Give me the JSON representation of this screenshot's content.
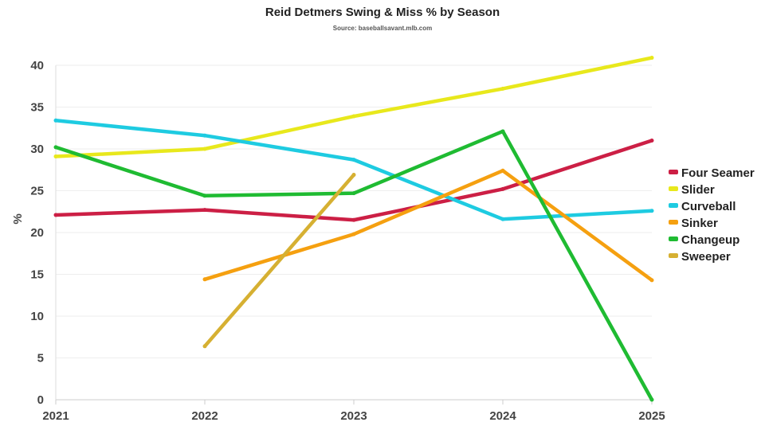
{
  "chart_data": {
    "type": "line",
    "title": "Reid Detmers Swing & Miss % by Season",
    "subtitle": "Source: baseballsavant.mlb.com",
    "xlabel": "",
    "ylabel": "%",
    "x": [
      "2021",
      "2022",
      "2023",
      "2024",
      "2025"
    ],
    "ylim": [
      0,
      40
    ],
    "yticks": [
      0,
      5,
      10,
      15,
      20,
      25,
      30,
      35,
      40
    ],
    "grid": true,
    "legend_position": "right",
    "series": [
      {
        "name": "Four Seamer",
        "color": "#cc1f45",
        "values": [
          22.1,
          22.7,
          21.5,
          25.2,
          31.0
        ]
      },
      {
        "name": "Slider",
        "color": "#e8e81c",
        "values": [
          29.1,
          30.0,
          33.9,
          37.2,
          40.9
        ]
      },
      {
        "name": "Curveball",
        "color": "#1ecbe1",
        "values": [
          33.4,
          31.6,
          28.7,
          21.6,
          22.6
        ]
      },
      {
        "name": "Sinker",
        "color": "#f5a010",
        "values": [
          null,
          14.4,
          19.8,
          27.4,
          14.3
        ]
      },
      {
        "name": "Changeup",
        "color": "#1fbb32",
        "values": [
          30.2,
          24.4,
          24.7,
          32.1,
          0.0
        ]
      },
      {
        "name": "Sweeper",
        "color": "#d6b032",
        "values": [
          null,
          6.4,
          26.9,
          null,
          null
        ]
      }
    ]
  }
}
